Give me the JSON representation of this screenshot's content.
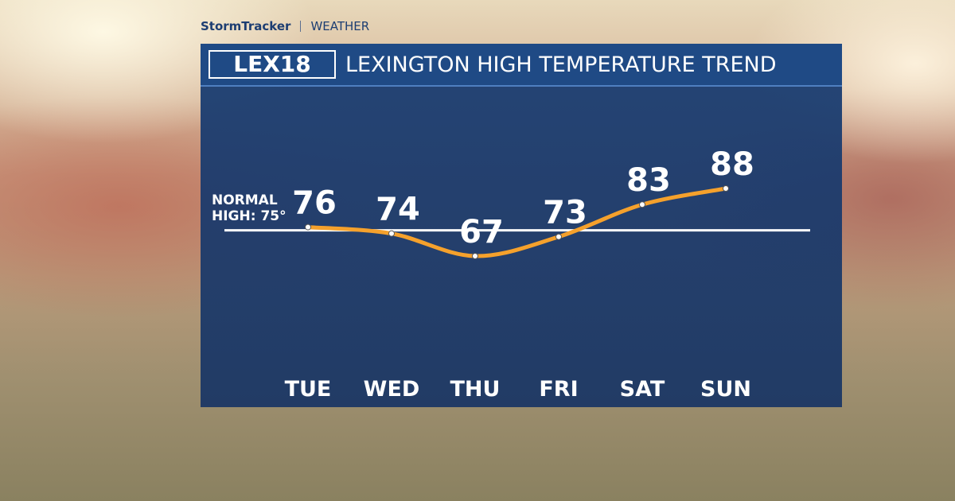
{
  "header": {
    "brand": "StormTracker",
    "section": "WEATHER"
  },
  "logo": "LEX18",
  "chart_data": {
    "type": "line",
    "title": "LEXINGTON HIGH TEMPERATURE TREND",
    "categories": [
      "TUE",
      "WED",
      "THU",
      "FRI",
      "SAT",
      "SUN"
    ],
    "values": [
      76,
      74,
      67,
      73,
      83,
      88
    ],
    "color": "#f5a12c",
    "reference_line": {
      "value": 75,
      "label": "NORMAL HIGH: 75°"
    }
  }
}
